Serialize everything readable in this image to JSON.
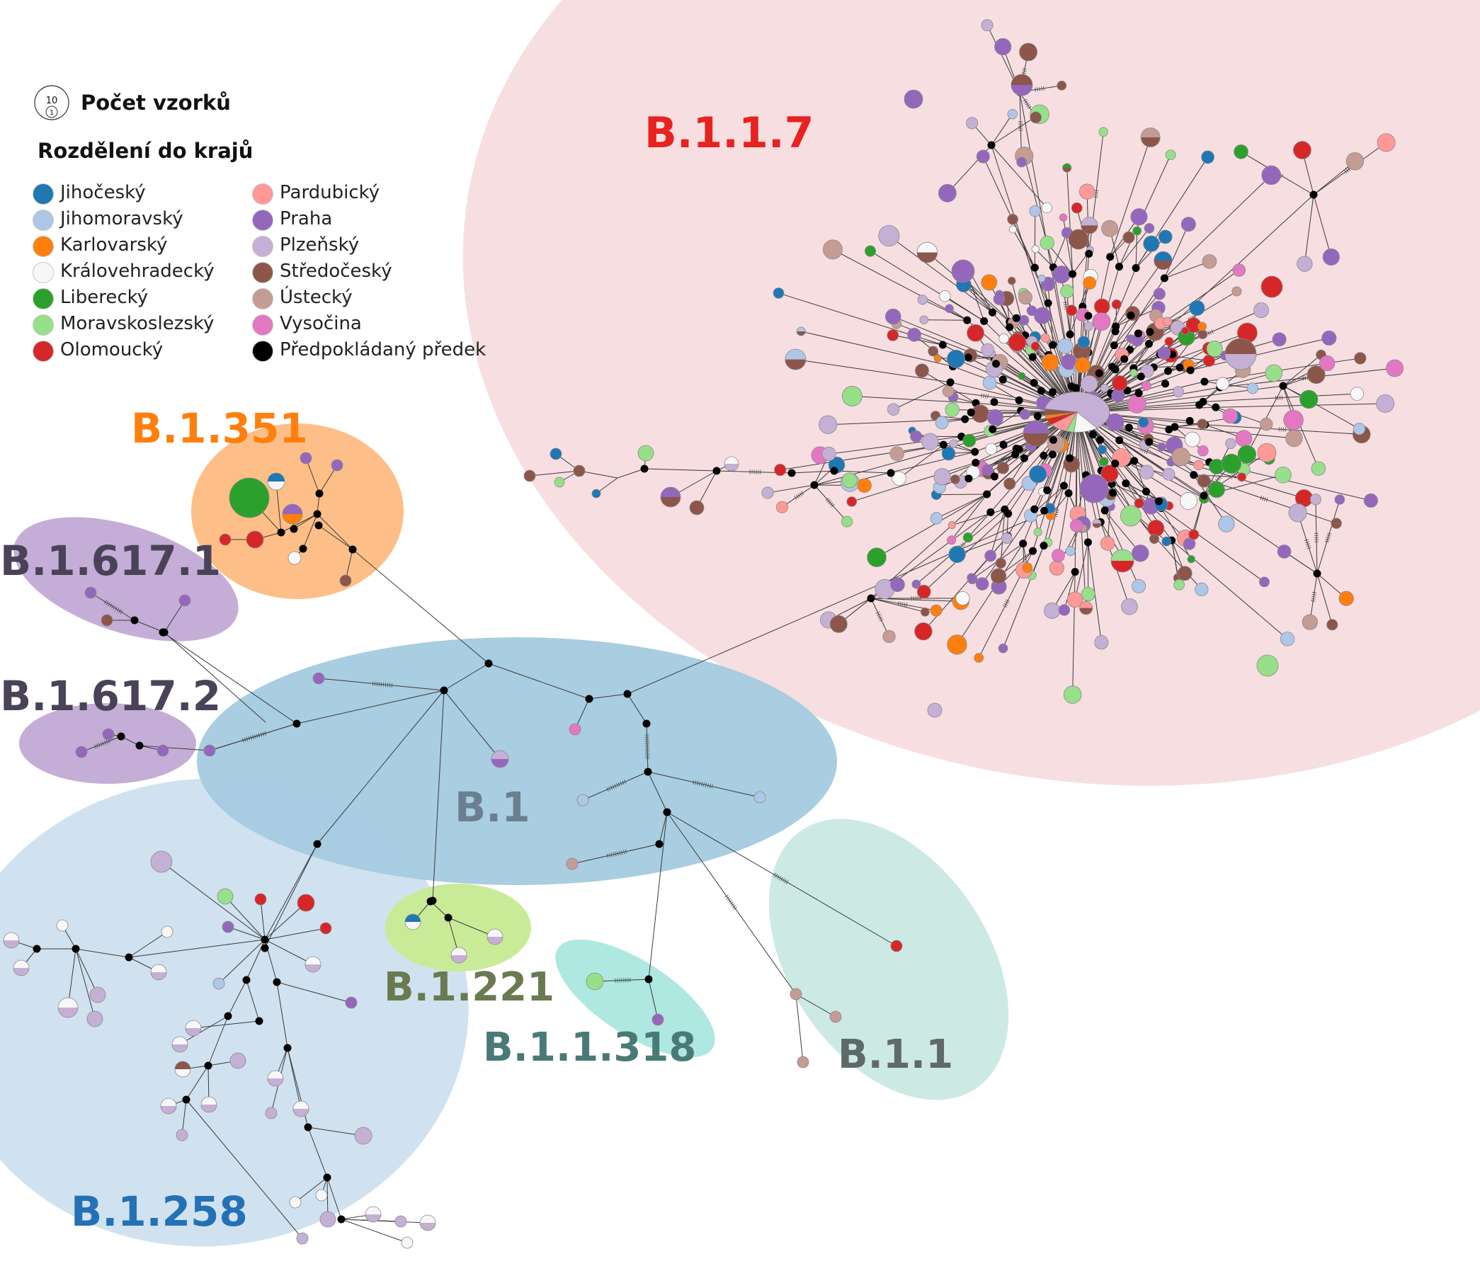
{
  "legend": {
    "count_title": "Počet vzorků",
    "count_sample_big": "10",
    "count_sample_small": "1",
    "regions_title": "Rozdělení do krajů",
    "regions": [
      {
        "name": "Jihočeský",
        "color": "#1f77b4"
      },
      {
        "name": "Jihomoravský",
        "color": "#aec7e8"
      },
      {
        "name": "Karlovarský",
        "color": "#ff7f0e"
      },
      {
        "name": "Královehradecký",
        "color": "#f7f7f7"
      },
      {
        "name": "Liberecký",
        "color": "#2ca02c"
      },
      {
        "name": "Moravskoslezský",
        "color": "#98df8a"
      },
      {
        "name": "Olomoucký",
        "color": "#d62728"
      },
      {
        "name": "Pardubický",
        "color": "#ff9896"
      },
      {
        "name": "Praha",
        "color": "#9467bd"
      },
      {
        "name": "Plzeňský",
        "color": "#c5b0d5"
      },
      {
        "name": "Středočeský",
        "color": "#8c564b"
      },
      {
        "name": "Ústecký",
        "color": "#c49c94"
      },
      {
        "name": "Vysočina",
        "color": "#e377c2"
      },
      {
        "name": "Předpokládaný předek",
        "color": "#000000"
      }
    ]
  },
  "clades": [
    {
      "label": "B.1.1.7",
      "color": "#e8221f",
      "fill": "#f7dfe1"
    },
    {
      "label": "B.1.351",
      "color": "#ff7f0e",
      "fill": "#fdbf87"
    },
    {
      "label": "B.1.617.1",
      "color": "#4a4358",
      "fill": "#c4aed7"
    },
    {
      "label": "B.1.617.2",
      "color": "#4a4358",
      "fill": "#c4aed7"
    },
    {
      "label": "B.1",
      "color": "#6a8090",
      "fill": "#a6cbe0"
    },
    {
      "label": "B.1.258",
      "color": "#2471b6",
      "fill": "#d0e2ef"
    },
    {
      "label": "B.1.221",
      "color": "#6a7a50",
      "fill": "#c9eb98"
    },
    {
      "label": "B.1.1.318",
      "color": "#4a7a78",
      "fill": "#aee8e1"
    },
    {
      "label": "B.1.1",
      "color": "#5e6a6a",
      "fill": "#cde9e4"
    }
  ]
}
